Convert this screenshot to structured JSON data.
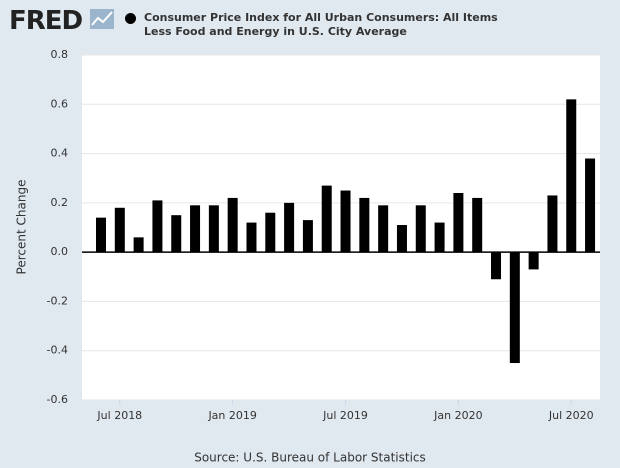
{
  "logo": "FRED",
  "chart_data": {
    "type": "bar",
    "title": "Consumer Price Index for All Urban Consumers: All Items Less Food and Energy in U.S. City Average",
    "y_label": "Percent Change",
    "source": "Source: U.S. Bureau of Labor Statistics",
    "categories": [
      null,
      "Jul 2018",
      null,
      null,
      null,
      null,
      null,
      "Jan 2019",
      null,
      null,
      null,
      null,
      null,
      "Jul 2019",
      null,
      null,
      null,
      null,
      null,
      "Jan 2020",
      null,
      null,
      null,
      null,
      null,
      "Jul 2020",
      null
    ],
    "values": [
      0.14,
      0.18,
      0.06,
      0.21,
      0.15,
      0.19,
      0.19,
      0.22,
      0.12,
      0.16,
      0.2,
      0.13,
      0.27,
      0.25,
      0.22,
      0.19,
      0.11,
      0.19,
      0.12,
      0.24,
      0.22,
      -0.11,
      -0.45,
      -0.07,
      0.23,
      0.62,
      0.38
    ],
    "color": "#000000",
    "ylim": [
      -0.6,
      0.8
    ],
    "yticks": [
      {
        "value": -0.6,
        "label": "-0.6"
      },
      {
        "value": -0.4,
        "label": "-0.4"
      },
      {
        "value": -0.2,
        "label": "-0.2"
      },
      {
        "value": 0,
        "label": "0.0"
      },
      {
        "value": 0.2,
        "label": "0.2"
      },
      {
        "value": 0.4,
        "label": "0.4"
      },
      {
        "value": 0.6,
        "label": "0.6"
      },
      {
        "value": 0.8,
        "label": "0.8"
      }
    ],
    "grid": true
  }
}
